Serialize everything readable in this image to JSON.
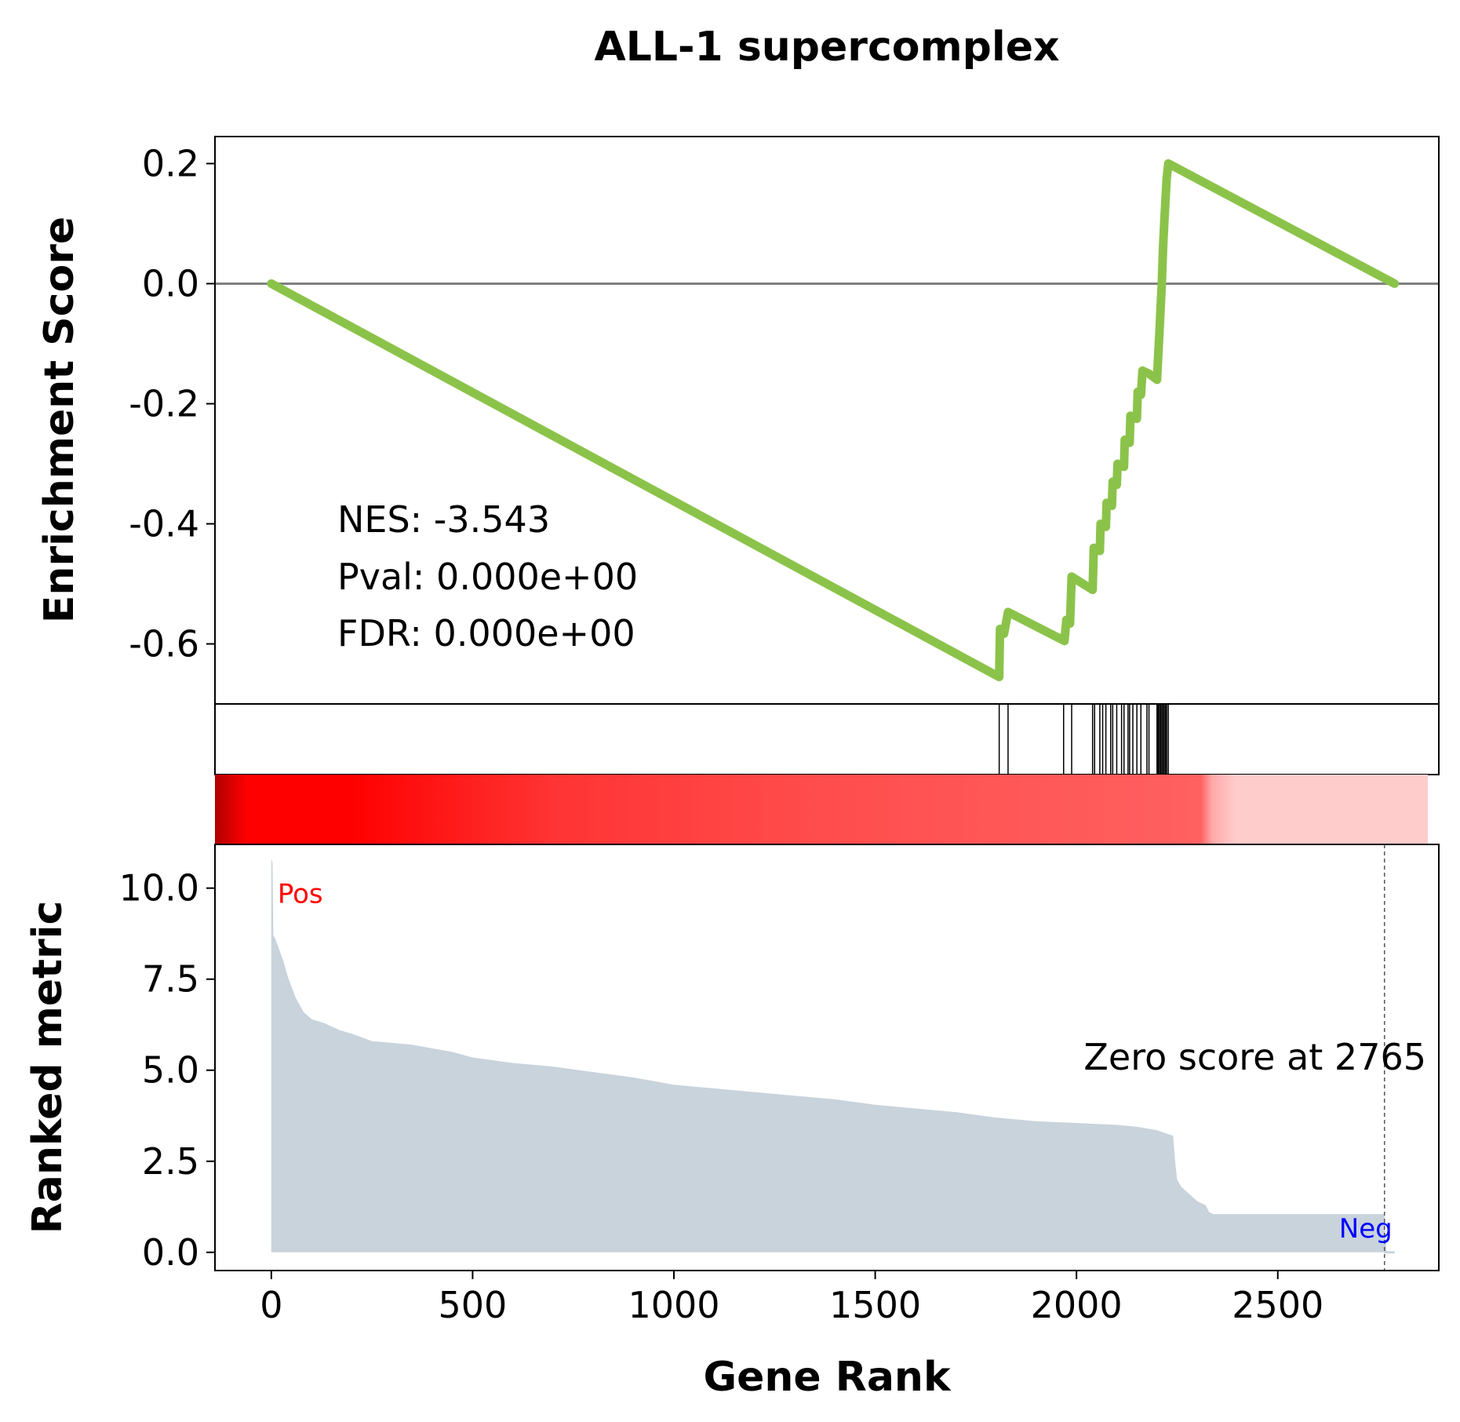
{
  "chart_data": {
    "type": "gsea_enrichment_plot",
    "title": "ALL-1 supercomplex",
    "xlabel": "Gene Rank",
    "xlim": [
      -140,
      2900
    ],
    "x_ticks": [
      0,
      500,
      1000,
      1500,
      2000,
      2500
    ],
    "x_tick_labels": [
      "0",
      "500",
      "1000",
      "1500",
      "2000",
      "2500"
    ],
    "enrichment_panel": {
      "ylabel": "Enrichment Score",
      "ylim": [
        -0.7,
        0.245
      ],
      "y_ticks": [
        0.2,
        0.0,
        -0.2,
        -0.4,
        -0.6
      ],
      "y_tick_labels": [
        "0.2",
        "0.0",
        "-0.2",
        "-0.4",
        "-0.6"
      ],
      "baseline": 0.0,
      "line_color": "#8bc34a",
      "baseline_color": "#808080",
      "running_es": [
        [
          0,
          0.0
        ],
        [
          1808,
          -0.655
        ],
        [
          1810,
          -0.575
        ],
        [
          1820,
          -0.583
        ],
        [
          1830,
          -0.547
        ],
        [
          1970,
          -0.595
        ],
        [
          1975,
          -0.56
        ],
        [
          1984,
          -0.566
        ],
        [
          1988,
          -0.488
        ],
        [
          2040,
          -0.51
        ],
        [
          2043,
          -0.44
        ],
        [
          2058,
          -0.445
        ],
        [
          2060,
          -0.4
        ],
        [
          2073,
          -0.405
        ],
        [
          2075,
          -0.365
        ],
        [
          2088,
          -0.37
        ],
        [
          2090,
          -0.33
        ],
        [
          2100,
          -0.335
        ],
        [
          2102,
          -0.3
        ],
        [
          2118,
          -0.305
        ],
        [
          2120,
          -0.26
        ],
        [
          2132,
          -0.265
        ],
        [
          2134,
          -0.22
        ],
        [
          2150,
          -0.225
        ],
        [
          2152,
          -0.18
        ],
        [
          2160,
          -0.185
        ],
        [
          2164,
          -0.145
        ],
        [
          2180,
          -0.15
        ],
        [
          2200,
          -0.16
        ],
        [
          2203,
          -0.12
        ],
        [
          2206,
          -0.08
        ],
        [
          2209,
          -0.04
        ],
        [
          2212,
          0.0
        ],
        [
          2215,
          0.06
        ],
        [
          2218,
          0.1
        ],
        [
          2221,
          0.14
        ],
        [
          2224,
          0.175
        ],
        [
          2228,
          0.2
        ],
        [
          2790,
          0.0
        ]
      ],
      "stats": {
        "nes": "NES: -3.543",
        "pval": "Pval: 0.000e+00",
        "fdr": "FDR: 0.000e+00"
      }
    },
    "hit_positions": [
      1808,
      1830,
      1968,
      1988,
      2040,
      2045,
      2058,
      2065,
      2073,
      2085,
      2090,
      2100,
      2112,
      2118,
      2128,
      2132,
      2140,
      2150,
      2160,
      2175,
      2180,
      2200,
      2203,
      2206,
      2209,
      2212,
      2215,
      2218,
      2221,
      2224,
      2228
    ],
    "rank_colorbar": {
      "x_range": [
        -140,
        2900
      ],
      "stops": [
        [
          -140,
          "#b00000"
        ],
        [
          -60,
          "#ff0000"
        ],
        [
          200,
          "#ff0000"
        ],
        [
          700,
          "#ff3333"
        ],
        [
          1300,
          "#ff4a4a"
        ],
        [
          1600,
          "#ff5252"
        ],
        [
          2330,
          "#ff6060"
        ],
        [
          2360,
          "#ffaaaa"
        ],
        [
          2420,
          "#ffcccc"
        ],
        [
          2900,
          "#ffcccc"
        ]
      ]
    },
    "ranked_metric_panel": {
      "ylabel": "Ranked metric",
      "ylim": [
        -0.5,
        11.2
      ],
      "y_ticks": [
        10.0,
        7.5,
        5.0,
        2.5,
        0.0
      ],
      "y_tick_labels": [
        "10.0",
        "7.5",
        "5.0",
        "2.5",
        "0.0"
      ],
      "fill_color": "#c8d3dc",
      "values": [
        [
          0,
          10.8
        ],
        [
          3,
          10.7
        ],
        [
          5,
          8.7
        ],
        [
          10,
          8.6
        ],
        [
          20,
          8.3
        ],
        [
          30,
          8.0
        ],
        [
          40,
          7.6
        ],
        [
          50,
          7.3
        ],
        [
          60,
          7.0
        ],
        [
          70,
          6.8
        ],
        [
          80,
          6.6
        ],
        [
          100,
          6.4
        ],
        [
          130,
          6.3
        ],
        [
          170,
          6.1
        ],
        [
          200,
          6.0
        ],
        [
          250,
          5.8
        ],
        [
          300,
          5.75
        ],
        [
          350,
          5.7
        ],
        [
          400,
          5.6
        ],
        [
          450,
          5.5
        ],
        [
          500,
          5.35
        ],
        [
          600,
          5.2
        ],
        [
          700,
          5.1
        ],
        [
          800,
          4.95
        ],
        [
          900,
          4.8
        ],
        [
          1000,
          4.6
        ],
        [
          1100,
          4.5
        ],
        [
          1200,
          4.4
        ],
        [
          1300,
          4.3
        ],
        [
          1400,
          4.2
        ],
        [
          1500,
          4.05
        ],
        [
          1600,
          3.95
        ],
        [
          1700,
          3.85
        ],
        [
          1800,
          3.7
        ],
        [
          1900,
          3.6
        ],
        [
          2000,
          3.55
        ],
        [
          2100,
          3.5
        ],
        [
          2150,
          3.45
        ],
        [
          2200,
          3.35
        ],
        [
          2240,
          3.2
        ],
        [
          2245,
          2.5
        ],
        [
          2250,
          2.0
        ],
        [
          2260,
          1.8
        ],
        [
          2280,
          1.6
        ],
        [
          2300,
          1.4
        ],
        [
          2320,
          1.3
        ],
        [
          2330,
          1.1
        ],
        [
          2340,
          1.05
        ],
        [
          2765,
          1.05
        ],
        [
          2770,
          0.0
        ],
        [
          2790,
          0.0
        ]
      ],
      "zero_score_rank": 2765,
      "zero_score_label": "Zero score at 2765",
      "pos_label": "Pos",
      "neg_label": "Neg",
      "pos_color": "#ff0000",
      "neg_color": "#0000ff"
    }
  }
}
